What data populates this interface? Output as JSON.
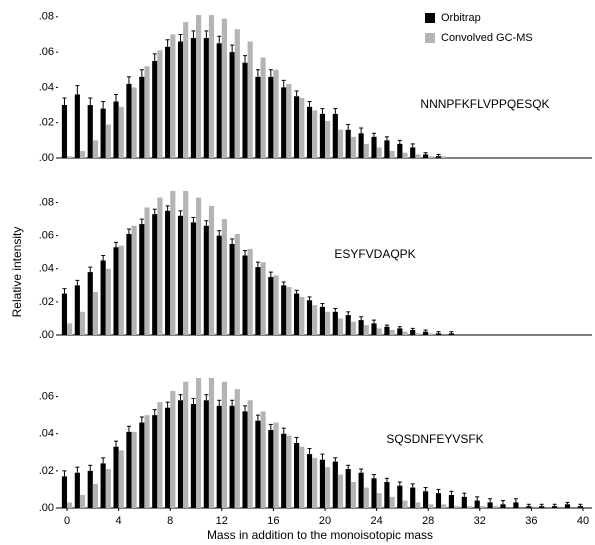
{
  "chart_data": [
    {
      "type": "bar",
      "annotation": "NNNPFKFLVPPQESQK",
      "legend": "upper right",
      "x": [
        0,
        1,
        2,
        3,
        4,
        5,
        6,
        7,
        8,
        9,
        10,
        11,
        12,
        13,
        14,
        15,
        16,
        17,
        18,
        19,
        20,
        21,
        22,
        23,
        24,
        25,
        26,
        27,
        28,
        29,
        30,
        31,
        32,
        33,
        34,
        35,
        36,
        37,
        38,
        39,
        40
      ],
      "xlim": [
        -0.7,
        40.7
      ],
      "ylim": [
        0,
        0.085
      ],
      "yticks": [
        {
          "value": 0,
          "label": ".00"
        },
        {
          "value": 0.02,
          "label": ".02"
        },
        {
          "value": 0.04,
          "label": ".04"
        },
        {
          "value": 0.06,
          "label": ".06"
        },
        {
          "value": 0.08,
          "label": ".08"
        }
      ],
      "series": [
        {
          "name": "Orbitrap",
          "color": "#000000",
          "values": [
            0.03,
            0.036,
            0.03,
            0.028,
            0.032,
            0.042,
            0.046,
            0.055,
            0.063,
            0.066,
            0.068,
            0.068,
            0.065,
            0.06,
            0.054,
            0.046,
            0.046,
            0.04,
            0.035,
            0.029,
            0.025,
            0.025,
            0.016,
            0.014,
            0.012,
            0.01,
            0.008,
            0.006,
            0.002,
            0.001,
            0,
            0,
            0,
            0,
            0,
            0,
            0,
            0,
            0,
            0,
            0
          ],
          "errors": [
            0.004,
            0.005,
            0.004,
            0.004,
            0.004,
            0.004,
            0.004,
            0.004,
            0.004,
            0.004,
            0.004,
            0.004,
            0.004,
            0.004,
            0.004,
            0.004,
            0.004,
            0.004,
            0.003,
            0.003,
            0.003,
            0.003,
            0.003,
            0.003,
            0.002,
            0.002,
            0.002,
            0.002,
            0.001,
            0.001,
            0,
            0,
            0,
            0,
            0,
            0,
            0,
            0,
            0,
            0,
            0
          ]
        },
        {
          "name": "Convolved GC-MS",
          "color": "#b4b4b4",
          "values": [
            0.001,
            0.004,
            0.01,
            0.019,
            0.029,
            0.04,
            0.052,
            0.061,
            0.07,
            0.077,
            0.081,
            0.081,
            0.079,
            0.073,
            0.066,
            0.057,
            0.05,
            0.042,
            0.034,
            0.027,
            0.021,
            0.016,
            0.012,
            0.008,
            0.006,
            0.004,
            0.003,
            0.002,
            0.001,
            0.001,
            0,
            0,
            0,
            0,
            0,
            0,
            0,
            0,
            0,
            0,
            0
          ]
        }
      ]
    },
    {
      "type": "bar",
      "annotation": "ESYFVDAQPK",
      "y_label": "Relative intensity",
      "x": [
        0,
        1,
        2,
        3,
        4,
        5,
        6,
        7,
        8,
        9,
        10,
        11,
        12,
        13,
        14,
        15,
        16,
        17,
        18,
        19,
        20,
        21,
        22,
        23,
        24,
        25,
        26,
        27,
        28,
        29,
        30,
        31,
        32,
        33,
        34,
        35,
        36,
        37,
        38,
        39,
        40
      ],
      "xlim": [
        -0.7,
        40.7
      ],
      "ylim": [
        0,
        0.09
      ],
      "yticks": [
        {
          "value": 0,
          "label": ".00"
        },
        {
          "value": 0.02,
          "label": ".02"
        },
        {
          "value": 0.04,
          "label": ".04"
        },
        {
          "value": 0.06,
          "label": ".06"
        },
        {
          "value": 0.08,
          "label": ".08"
        }
      ],
      "series": [
        {
          "name": "Orbitrap",
          "color": "#000000",
          "values": [
            0.025,
            0.03,
            0.038,
            0.045,
            0.053,
            0.061,
            0.067,
            0.073,
            0.075,
            0.072,
            0.068,
            0.066,
            0.06,
            0.055,
            0.048,
            0.041,
            0.035,
            0.03,
            0.025,
            0.021,
            0.017,
            0.014,
            0.012,
            0.009,
            0.007,
            0.005,
            0.004,
            0.003,
            0.002,
            0.001,
            0.001,
            0,
            0,
            0,
            0,
            0,
            0,
            0,
            0,
            0,
            0
          ],
          "errors": [
            0.003,
            0.003,
            0.003,
            0.003,
            0.003,
            0.003,
            0.003,
            0.003,
            0.003,
            0.003,
            0.003,
            0.003,
            0.003,
            0.003,
            0.003,
            0.003,
            0.003,
            0.002,
            0.002,
            0.002,
            0.002,
            0.002,
            0.002,
            0.002,
            0.002,
            0.001,
            0.001,
            0.001,
            0.001,
            0.001,
            0.001,
            0,
            0,
            0,
            0,
            0,
            0,
            0,
            0,
            0,
            0
          ]
        },
        {
          "name": "Convolved GC-MS",
          "color": "#b4b4b4",
          "values": [
            0.007,
            0.014,
            0.026,
            0.04,
            0.054,
            0.066,
            0.077,
            0.083,
            0.087,
            0.087,
            0.083,
            0.078,
            0.07,
            0.061,
            0.052,
            0.044,
            0.036,
            0.029,
            0.023,
            0.018,
            0.014,
            0.01,
            0.008,
            0.006,
            0.004,
            0.003,
            0.002,
            0.001,
            0.001,
            0,
            0,
            0,
            0,
            0,
            0,
            0,
            0,
            0,
            0,
            0,
            0
          ]
        }
      ]
    },
    {
      "type": "bar",
      "annotation": "SQSDNFEYVSFK",
      "x_label": "Mass in addition to the monoisotopic mass",
      "x": [
        0,
        1,
        2,
        3,
        4,
        5,
        6,
        7,
        8,
        9,
        10,
        11,
        12,
        13,
        14,
        15,
        16,
        17,
        18,
        19,
        20,
        21,
        22,
        23,
        24,
        25,
        26,
        27,
        28,
        29,
        30,
        31,
        32,
        33,
        34,
        35,
        36,
        37,
        38,
        39,
        40
      ],
      "xlim": [
        -0.7,
        40.7
      ],
      "xticks": [
        0,
        4,
        8,
        12,
        16,
        20,
        24,
        28,
        32,
        36,
        40
      ],
      "ylim": [
        0,
        0.07
      ],
      "yticks": [
        {
          "value": 0,
          "label": ".00"
        },
        {
          "value": 0.02,
          "label": ".02"
        },
        {
          "value": 0.04,
          "label": ".04"
        },
        {
          "value": 0.06,
          "label": ".06"
        }
      ],
      "series": [
        {
          "name": "Orbitrap",
          "color": "#000000",
          "values": [
            0.017,
            0.019,
            0.02,
            0.024,
            0.033,
            0.041,
            0.046,
            0.05,
            0.054,
            0.058,
            0.056,
            0.058,
            0.055,
            0.055,
            0.052,
            0.047,
            0.042,
            0.04,
            0.035,
            0.029,
            0.026,
            0.025,
            0.021,
            0.019,
            0.016,
            0.014,
            0.012,
            0.011,
            0.009,
            0.008,
            0.007,
            0.006,
            0.004,
            0.003,
            0.002,
            0.003,
            0.001,
            0.001,
            0.001,
            0.002,
            0.001
          ],
          "errors": [
            0.003,
            0.003,
            0.003,
            0.003,
            0.003,
            0.003,
            0.003,
            0.003,
            0.003,
            0.003,
            0.003,
            0.003,
            0.003,
            0.003,
            0.003,
            0.003,
            0.003,
            0.003,
            0.003,
            0.003,
            0.003,
            0.002,
            0.002,
            0.002,
            0.002,
            0.002,
            0.002,
            0.002,
            0.002,
            0.002,
            0.002,
            0.002,
            0.002,
            0.002,
            0.002,
            0.002,
            0.001,
            0.001,
            0.001,
            0.001,
            0.001
          ]
        },
        {
          "name": "Convolved GC-MS",
          "color": "#b4b4b4",
          "values": [
            0.003,
            0.007,
            0.013,
            0.021,
            0.031,
            0.041,
            0.05,
            0.057,
            0.063,
            0.068,
            0.07,
            0.07,
            0.068,
            0.064,
            0.058,
            0.052,
            0.046,
            0.039,
            0.033,
            0.027,
            0.022,
            0.018,
            0.014,
            0.011,
            0.008,
            0.006,
            0.004,
            0.003,
            0.002,
            0.002,
            0.001,
            0.001,
            0.001,
            0.001,
            0,
            0,
            0,
            0,
            0,
            0,
            0
          ]
        }
      ]
    }
  ]
}
